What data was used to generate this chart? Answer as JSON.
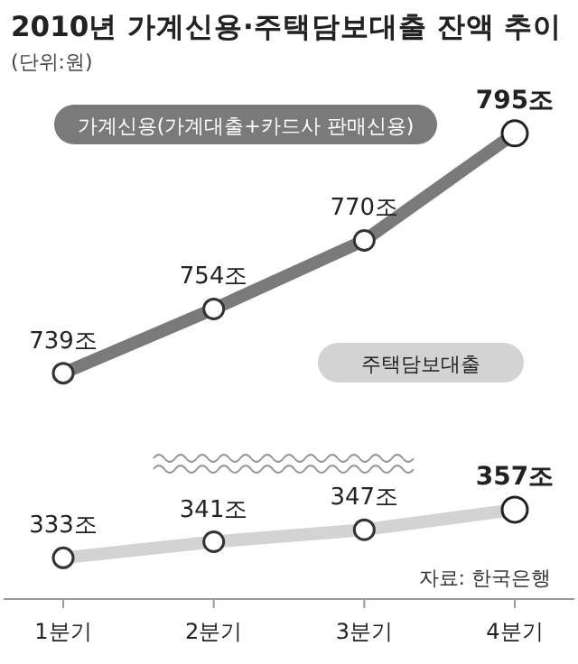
{
  "chart_data": [
    {
      "type": "line",
      "title": "2010년 가계신용·주택담보대출 잔액 추이",
      "subtitle": "(단위:원)",
      "categories": [
        null,
        null,
        null,
        null
      ],
      "tick_labels": false,
      "marker": "circle",
      "series": [
        {
          "name": "가계신용(가계대출+카드사 판매신용)",
          "color": "#7a7a7a",
          "values": [
            739,
            754,
            770,
            795
          ],
          "value_labels": [
            "739조",
            "754조",
            "770조",
            "795조"
          ]
        }
      ]
    },
    {
      "type": "line",
      "categories": [
        "1분기",
        "2분기",
        "3분기",
        "4분기"
      ],
      "tick_labels": "x",
      "marker": "circle",
      "annotations": [
        "자료: 한국은행"
      ],
      "series": [
        {
          "name": "주택담보대출",
          "color": "#d3d3d3",
          "values": [
            333,
            341,
            347,
            357
          ],
          "value_labels": [
            "333조",
            "341조",
            "347조",
            "357조"
          ]
        }
      ]
    }
  ]
}
